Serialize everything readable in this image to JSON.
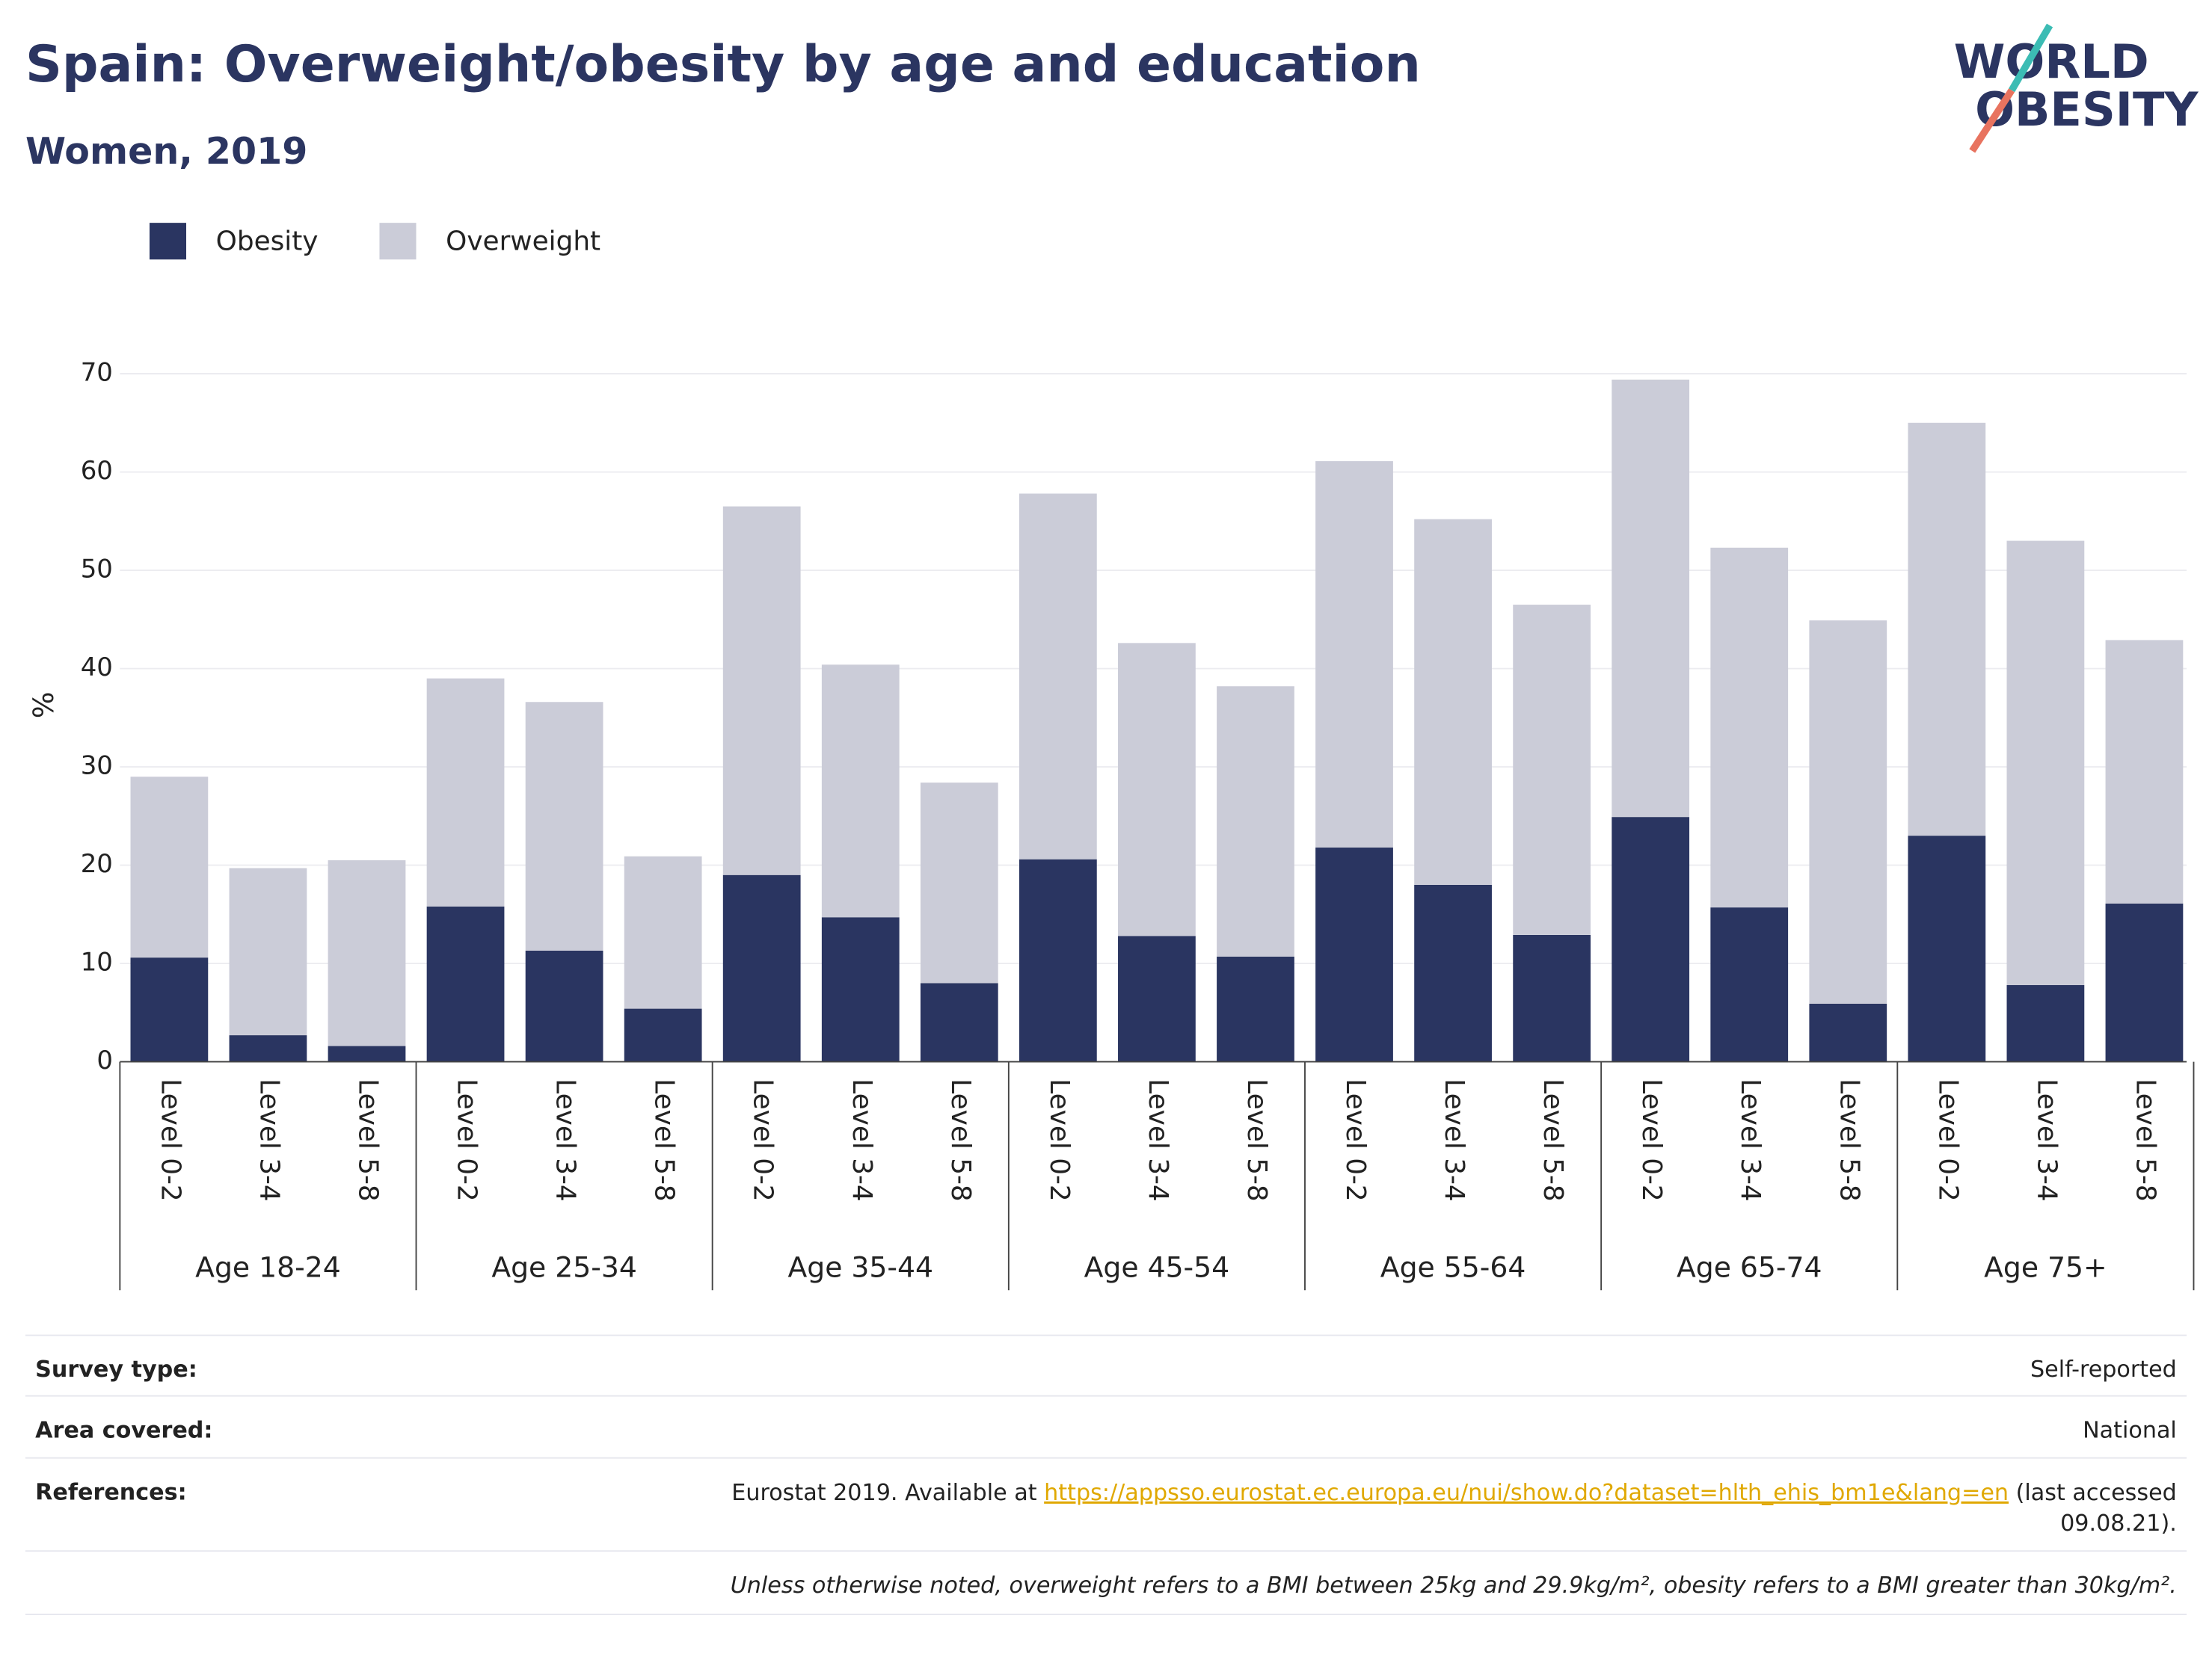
{
  "chart_data": {
    "type": "stacked_bar",
    "title": "Spain: Overweight/obesity by age and education",
    "subtitle": "Women, 2019",
    "ylabel": "%",
    "groups": [
      "Age 18-24",
      "Age 25-34",
      "Age 35-44",
      "Age 45-54",
      "Age 55-64",
      "Age 65-74",
      "Age 75+"
    ],
    "categories": [
      "Level 0-2",
      "Level 3-4",
      "Level 5-8",
      "Level 0-2",
      "Level 3-4",
      "Level 5-8",
      "Level 0-2",
      "Level 3-4",
      "Level 5-8",
      "Level 0-2",
      "Level 3-4",
      "Level 5-8",
      "Level 0-2",
      "Level 3-4",
      "Level 5-8",
      "Level 0-2",
      "Level 3-4",
      "Level 5-8",
      "Level 0-2",
      "Level 3-4",
      "Level 5-8"
    ],
    "series": [
      {
        "name": "Obesity",
        "color": "#2a3561",
        "values": [
          10.6,
          2.7,
          1.6,
          15.8,
          11.3,
          5.4,
          19.0,
          14.7,
          8.0,
          20.6,
          12.8,
          10.7,
          21.8,
          18.0,
          12.9,
          24.9,
          15.7,
          5.9,
          23.0,
          7.8,
          16.1
        ]
      },
      {
        "name": "Overweight",
        "color": "#cbccd8",
        "values": [
          18.4,
          17.0,
          18.9,
          23.2,
          25.3,
          15.5,
          37.5,
          25.7,
          20.4,
          37.2,
          29.8,
          27.5,
          39.3,
          37.2,
          33.6,
          44.5,
          36.6,
          39.0,
          42.0,
          45.2,
          26.8
        ]
      }
    ],
    "ylim": [
      0,
      70
    ],
    "yticks": [
      0,
      10,
      20,
      30,
      40,
      50,
      60,
      70
    ],
    "grid": true,
    "legend": "top-left"
  },
  "logo": {
    "line1": "WORLD",
    "line2": "OBESITY"
  },
  "footer": {
    "survey_type": {
      "label": "Survey type:",
      "value": "Self-reported"
    },
    "area_covered": {
      "label": "Area covered:",
      "value": "National"
    },
    "references": {
      "label": "References:",
      "text": "Eurostat 2019. Available at ",
      "link": "https://appsso.eurostat.ec.europa.eu/nui/show.do?dataset=hlth_ehis_bm1e&lang=en",
      "after": " (last accessed",
      "after2": "09.08.21)."
    },
    "note": "Unless otherwise noted, overweight refers to a BMI between 25kg and 29.9kg/m², obesity refers to a BMI greater than 30kg/m²."
  }
}
